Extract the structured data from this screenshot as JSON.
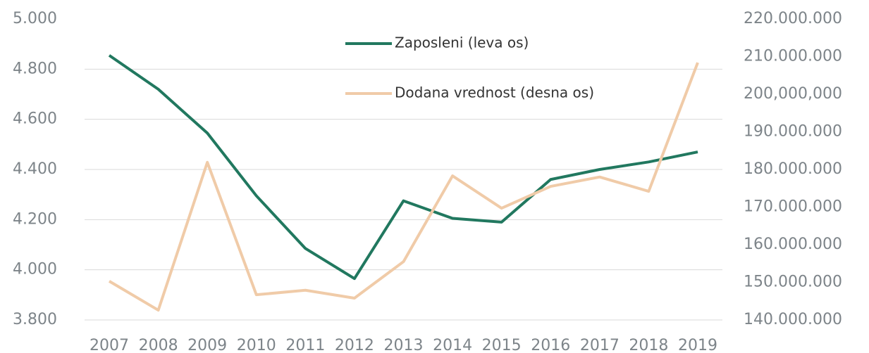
{
  "chart_data": {
    "type": "line",
    "categories": [
      "2007",
      "2008",
      "2009",
      "2010",
      "2011",
      "2012",
      "2013",
      "2014",
      "2015",
      "2016",
      "2017",
      "2018",
      "2019"
    ],
    "series": [
      {
        "name": "Zaposleni (leva os)",
        "color": "#21785f",
        "axis": "y",
        "values": [
          4855,
          4720,
          4545,
          4295,
          4085,
          3965,
          4275,
          4205,
          4190,
          4360,
          4400,
          4430,
          4470
        ]
      },
      {
        "name": "Dodana vrednost (desna os)",
        "color": "#f0cba8",
        "axis": "y2",
        "values": [
          150300000,
          142600000,
          181900000,
          146700000,
          147900000,
          145800000,
          155500000,
          178300000,
          169700000,
          175500000,
          178000000,
          174200000,
          208400000
        ]
      }
    ],
    "ylim": [
      3800,
      5000
    ],
    "yticks": [
      {
        "value": 3800,
        "label": "3.800"
      },
      {
        "value": 4000,
        "label": "4.000"
      },
      {
        "value": 4200,
        "label": "4.200"
      },
      {
        "value": 4400,
        "label": "4.400"
      },
      {
        "value": 4600,
        "label": "4.600"
      },
      {
        "value": 4800,
        "label": "4.800"
      },
      {
        "value": 5000,
        "label": "5.000"
      }
    ],
    "y2lim": [
      140000000,
      220000000
    ],
    "y2ticks": [
      {
        "value": 140000000,
        "label": "140.000.000"
      },
      {
        "value": 150000000,
        "label": "150.000.000"
      },
      {
        "value": 160000000,
        "label": "160.000.000"
      },
      {
        "value": 170000000,
        "label": "170.000.000"
      },
      {
        "value": 180000000,
        "label": "180.000.000"
      },
      {
        "value": 190000000,
        "label": "190.000.000"
      },
      {
        "value": 200000000,
        "label": "200,000,000"
      },
      {
        "value": 210000000,
        "label": "210.000.000"
      },
      {
        "value": 220000000,
        "label": "220.000.000"
      }
    ],
    "grid": true
  }
}
